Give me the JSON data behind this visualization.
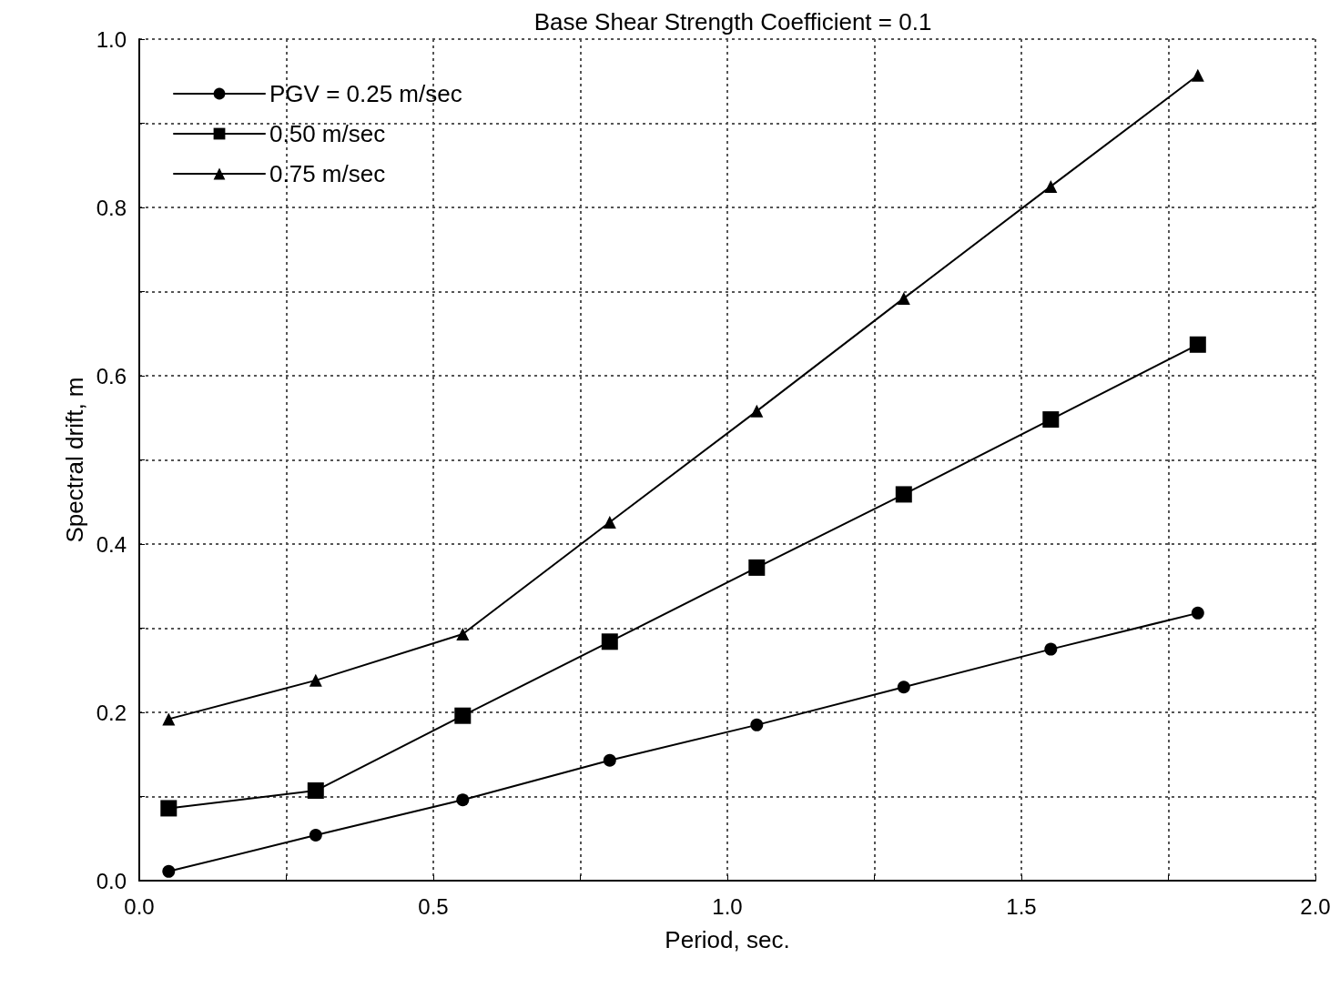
{
  "chart_data": {
    "type": "line",
    "title": "Base Shear Strength Coefficient = 0.1",
    "xlabel": "Period, sec.",
    "ylabel": "Spectral drift, m",
    "x": [
      0.05,
      0.3,
      0.55,
      0.8,
      1.05,
      1.3,
      1.55,
      1.8
    ],
    "series": [
      {
        "name": "PGV = 0.25 m/sec",
        "color": "#000000",
        "marker": "circle",
        "values": [
          0.011,
          0.054,
          0.096,
          0.143,
          0.185,
          0.23,
          0.275,
          0.318
        ]
      },
      {
        "name": "0.50 m/sec",
        "color": "#000000",
        "marker": "square",
        "values": [
          0.086,
          0.107,
          0.196,
          0.284,
          0.372,
          0.459,
          0.548,
          0.637
        ]
      },
      {
        "name": "0.75 m/sec",
        "color": "#000000",
        "marker": "triangle",
        "values": [
          0.192,
          0.238,
          0.293,
          0.426,
          0.558,
          0.692,
          0.825,
          0.957
        ]
      }
    ],
    "xlim": [
      0,
      2
    ],
    "xticks": [
      {
        "value": 0,
        "label": "0.0"
      },
      {
        "value": 0.25,
        "label": null
      },
      {
        "value": 0.5,
        "label": "0.5"
      },
      {
        "value": 0.75,
        "label": null
      },
      {
        "value": 1,
        "label": "1.0"
      },
      {
        "value": 1.25,
        "label": null
      },
      {
        "value": 1.5,
        "label": "1.5"
      },
      {
        "value": 1.75,
        "label": null
      },
      {
        "value": 2,
        "label": "2.0"
      }
    ],
    "ylim": [
      0,
      1
    ],
    "yticks": [
      {
        "value": 0,
        "label": "0.0"
      },
      {
        "value": 0.1,
        "label": null
      },
      {
        "value": 0.2,
        "label": "0.2"
      },
      {
        "value": 0.3,
        "label": null
      },
      {
        "value": 0.4,
        "label": "0.4"
      },
      {
        "value": 0.5,
        "label": null
      },
      {
        "value": 0.6,
        "label": "0.6"
      },
      {
        "value": 0.7,
        "label": null
      },
      {
        "value": 0.8,
        "label": "0.8"
      },
      {
        "value": 0.9,
        "label": null
      },
      {
        "value": 1,
        "label": "1.0"
      }
    ],
    "grid": true,
    "legend": "top left",
    "line_style": "solid"
  }
}
